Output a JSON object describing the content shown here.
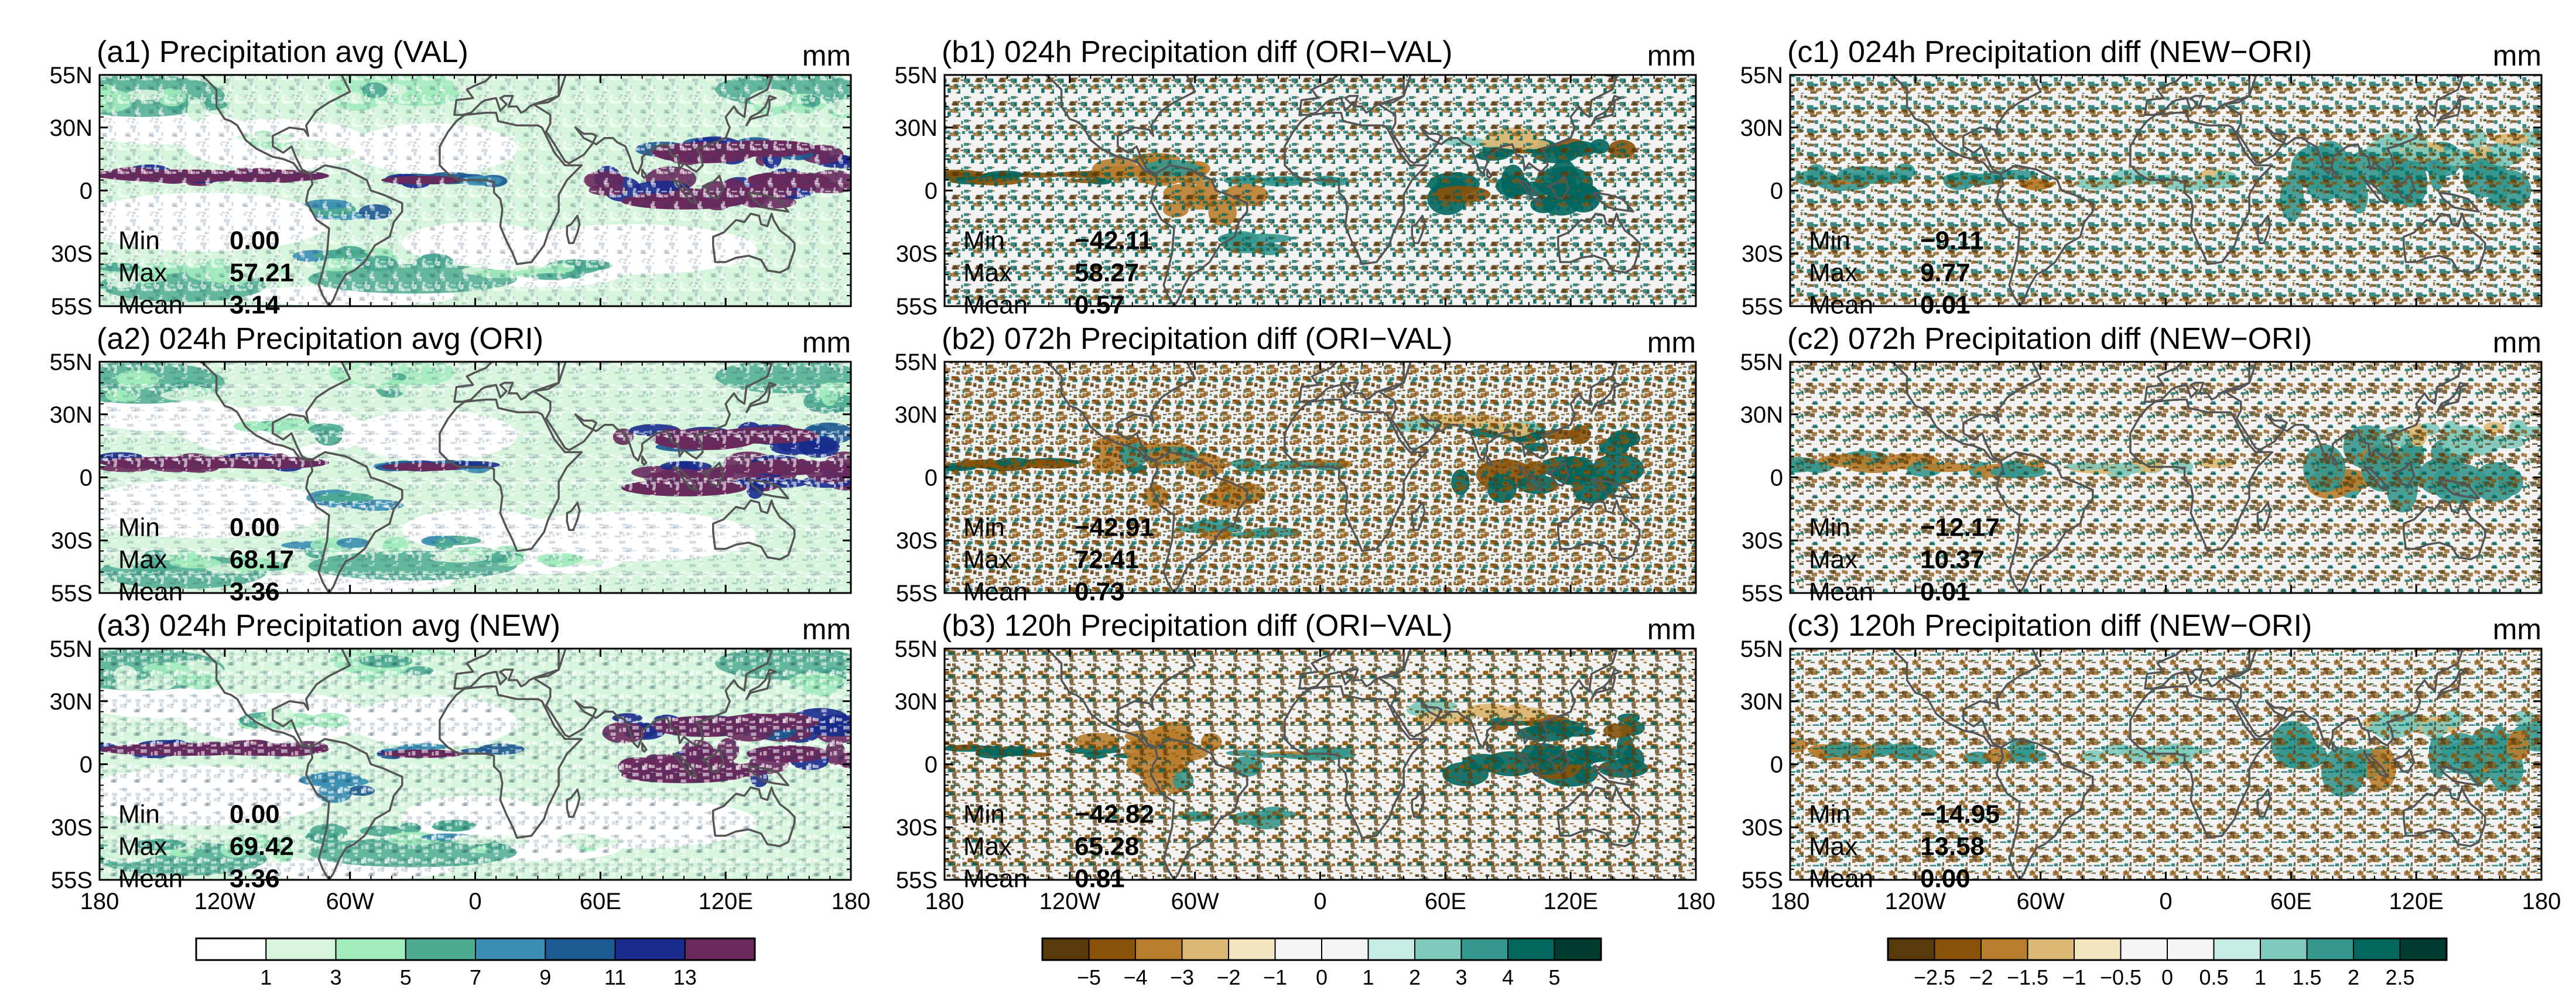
{
  "chart_data": [
    {
      "id": "a1",
      "type": "heatmap",
      "title": "(a1) Precipitation avg (VAL)",
      "unit": "mm",
      "scale": "avg",
      "stats": {
        "min_label": "Min",
        "min": "0.00",
        "max_label": "Max",
        "max": "57.21",
        "mean_label": "Mean",
        "mean": "3.14"
      }
    },
    {
      "id": "b1",
      "type": "heatmap",
      "title": "(b1) 024h Precipitation diff (ORI−VAL)",
      "unit": "mm",
      "scale": "diff",
      "stats": {
        "min_label": "Min",
        "min": "−42.11",
        "max_label": "Max",
        "max": "58.27",
        "mean_label": "Mean",
        "mean": "0.57"
      }
    },
    {
      "id": "c1",
      "type": "heatmap",
      "title": "(c1) 024h Precipitation diff (NEW−ORI)",
      "unit": "mm",
      "scale": "small",
      "stats": {
        "min_label": "Min",
        "min": "−9.11",
        "max_label": "Max",
        "max": "9.77",
        "mean_label": "Mean",
        "mean": "0.01"
      }
    },
    {
      "id": "a2",
      "type": "heatmap",
      "title": "(a2) 024h Precipitation avg (ORI)",
      "unit": "mm",
      "scale": "avg",
      "stats": {
        "min_label": "Min",
        "min": "0.00",
        "max_label": "Max",
        "max": "68.17",
        "mean_label": "Mean",
        "mean": "3.36"
      }
    },
    {
      "id": "b2",
      "type": "heatmap",
      "title": "(b2) 072h Precipitation diff (ORI−VAL)",
      "unit": "mm",
      "scale": "diff",
      "stats": {
        "min_label": "Min",
        "min": "−42.91",
        "max_label": "Max",
        "max": "72.41",
        "mean_label": "Mean",
        "mean": "0.73"
      }
    },
    {
      "id": "c2",
      "type": "heatmap",
      "title": "(c2) 072h Precipitation diff (NEW−ORI)",
      "unit": "mm",
      "scale": "small",
      "stats": {
        "min_label": "Min",
        "min": "−12.17",
        "max_label": "Max",
        "max": "10.37",
        "mean_label": "Mean",
        "mean": "0.01"
      }
    },
    {
      "id": "a3",
      "type": "heatmap",
      "title": "(a3) 024h Precipitation avg (NEW)",
      "unit": "mm",
      "scale": "avg",
      "stats": {
        "min_label": "Min",
        "min": "0.00",
        "max_label": "Max",
        "max": "69.42",
        "mean_label": "Mean",
        "mean": "3.36"
      }
    },
    {
      "id": "b3",
      "type": "heatmap",
      "title": "(b3) 120h Precipitation diff (ORI−VAL)",
      "unit": "mm",
      "scale": "diff",
      "stats": {
        "min_label": "Min",
        "min": "−42.82",
        "max_label": "Max",
        "max": "65.28",
        "mean_label": "Mean",
        "mean": "0.81"
      }
    },
    {
      "id": "c3",
      "type": "heatmap",
      "title": "(c3) 120h Precipitation diff (NEW−ORI)",
      "unit": "mm",
      "scale": "small",
      "stats": {
        "min_label": "Min",
        "min": "−14.95",
        "max_label": "Max",
        "max": "13.58",
        "mean_label": "Mean",
        "mean": "0.00"
      }
    }
  ],
  "axes": {
    "lon_ticks": [
      {
        "value": -180,
        "label": "180"
      },
      {
        "value": -120,
        "label": "120W"
      },
      {
        "value": -60,
        "label": "60W"
      },
      {
        "value": 0,
        "label": "0"
      },
      {
        "value": 60,
        "label": "60E"
      },
      {
        "value": 120,
        "label": "120E"
      },
      {
        "value": 180,
        "label": "180"
      }
    ],
    "lat_ticks": [
      {
        "value": 55,
        "label": "55N"
      },
      {
        "value": 30,
        "label": "30N"
      },
      {
        "value": 0,
        "label": "0"
      },
      {
        "value": -30,
        "label": "30S"
      },
      {
        "value": -55,
        "label": "55S"
      }
    ],
    "lon_range": [
      -180,
      180
    ],
    "lat_range": [
      -55,
      55
    ]
  },
  "colorbars": {
    "avg": {
      "colors": [
        "#ffffff",
        "#d6f5dc",
        "#a2ebbd",
        "#4dab91",
        "#3b8fb4",
        "#1d5a94",
        "#1a2a8e",
        "#6b2a5e"
      ],
      "labels": [
        "1",
        "3",
        "5",
        "7",
        "9",
        "11",
        "13"
      ]
    },
    "diff": {
      "colors": [
        "#5a3a0a",
        "#8a5209",
        "#b97d2e",
        "#dbb874",
        "#f3e5c0",
        "#f5f5f5",
        "#f5f5f5",
        "#c7ebe5",
        "#7fc9bd",
        "#35978f",
        "#00665e",
        "#003c30"
      ],
      "labels": [
        "−5",
        "−4",
        "−3",
        "−2",
        "−1",
        "0",
        "1",
        "2",
        "3",
        "4",
        "5"
      ]
    },
    "small": {
      "colors": [
        "#5a3a0a",
        "#8a5209",
        "#b97d2e",
        "#dbb874",
        "#f3e5c0",
        "#f5f5f5",
        "#f5f5f5",
        "#c7ebe5",
        "#7fc9bd",
        "#35978f",
        "#00665e",
        "#003c30"
      ],
      "labels": [
        "−2.5",
        "−2",
        "−1.5",
        "−1",
        "−0.5",
        "0",
        "0.5",
        "1",
        "1.5",
        "2",
        "2.5"
      ]
    }
  }
}
